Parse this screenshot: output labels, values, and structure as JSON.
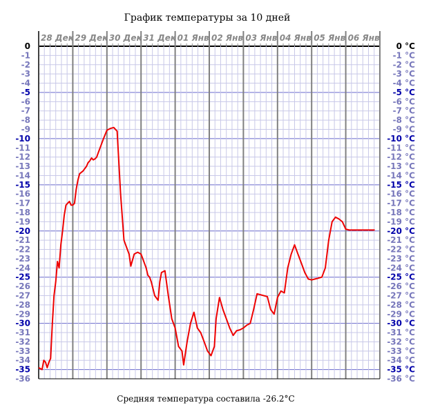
{
  "chart_data": {
    "type": "line",
    "title": "График температуры за 10 дней",
    "footer": "Средняя температура составила -26.2°C",
    "xlabel": "",
    "ylabel": "",
    "y_unit": "°C",
    "ylim": [
      -36,
      0
    ],
    "ytick_step": 1,
    "x_range_days": [
      0,
      10
    ],
    "x_ticks": [
      "28 Дек",
      "29 Дек",
      "30 Дек",
      "31 Дек",
      "01 Янв",
      "02 Янв",
      "03 Янв",
      "04 Янв",
      "05 Янв",
      "06 Янв"
    ],
    "grid": true,
    "colors": {
      "line": "#ee0000",
      "major_grid": "#6666cc",
      "minor_grid": "#c8c8e8",
      "day_grid": "#808080",
      "ytick_major": "#0000aa",
      "ytick_minor": "#7777bb",
      "axis": "#000000"
    },
    "series": [
      {
        "x": [
          0.0,
          0.1,
          0.15,
          0.2,
          0.25,
          0.3,
          0.35,
          0.4,
          0.45,
          0.5,
          0.55,
          0.6,
          0.65,
          0.7,
          0.75,
          0.8,
          0.85,
          0.9,
          0.95,
          1.0,
          1.05,
          1.1,
          1.15,
          1.2,
          1.3,
          1.4,
          1.45,
          1.5,
          1.55,
          1.6,
          1.65,
          1.7,
          1.75,
          1.8,
          1.9,
          2.0,
          2.1,
          2.2,
          2.3,
          2.4,
          2.5,
          2.6,
          2.65,
          2.7,
          2.8,
          2.9,
          3.0,
          3.05,
          3.1,
          3.15,
          3.2,
          3.25,
          3.3,
          3.4,
          3.5,
          3.55,
          3.6,
          3.7,
          3.8,
          3.9,
          4.0,
          4.1,
          4.2,
          4.25,
          4.35,
          4.45,
          4.55,
          4.65,
          4.75,
          4.85,
          4.95,
          5.05,
          5.15,
          5.2,
          5.3,
          5.4,
          5.5,
          5.6,
          5.7,
          5.8,
          5.9,
          6.0,
          6.1,
          6.2,
          6.3,
          6.4,
          6.5,
          6.6,
          6.7,
          6.8,
          6.9,
          7.0,
          7.1,
          7.2,
          7.3,
          7.4,
          7.5,
          7.6,
          7.7,
          7.8,
          7.9,
          8.0,
          8.1,
          8.2,
          8.3,
          8.4,
          8.5,
          8.6,
          8.7,
          8.8,
          8.9,
          9.0,
          9.1,
          9.2,
          9.3,
          9.4,
          9.5,
          9.6,
          9.7,
          9.8,
          9.85
        ],
        "y": [
          -34.8,
          -35.0,
          -34.0,
          -34.2,
          -34.8,
          -34.2,
          -33.8,
          -30.0,
          -27.0,
          -25.5,
          -23.3,
          -24.0,
          -21.5,
          -20.0,
          -18.3,
          -17.2,
          -17.0,
          -16.8,
          -17.2,
          -17.2,
          -17.0,
          -15.5,
          -14.5,
          -13.8,
          -13.5,
          -13.0,
          -12.6,
          -12.4,
          -12.1,
          -12.3,
          -12.2,
          -12.0,
          -11.5,
          -11.0,
          -10.0,
          -9.1,
          -8.9,
          -8.8,
          -9.2,
          -16.0,
          -21.0,
          -22.0,
          -22.5,
          -23.8,
          -22.5,
          -22.3,
          -22.5,
          -23.0,
          -23.5,
          -24.0,
          -24.8,
          -25.0,
          -25.5,
          -27.0,
          -27.5,
          -25.5,
          -24.5,
          -24.3,
          -27.0,
          -29.5,
          -30.5,
          -32.5,
          -33.0,
          -34.5,
          -32.0,
          -30.0,
          -28.8,
          -30.5,
          -31.0,
          -32.0,
          -33.0,
          -33.5,
          -32.5,
          -29.5,
          -27.2,
          -28.5,
          -29.5,
          -30.5,
          -31.3,
          -30.8,
          -30.7,
          -30.5,
          -30.2,
          -30.0,
          -28.5,
          -26.8,
          -26.9,
          -27.0,
          -27.1,
          -28.5,
          -29.0,
          -27.2,
          -26.5,
          -26.7,
          -24.0,
          -22.5,
          -21.5,
          -22.5,
          -23.5,
          -24.5,
          -25.2,
          -25.3,
          -25.2,
          -25.1,
          -25.0,
          -24.0,
          -21.0,
          -19.0,
          -18.5,
          -18.7,
          -19.0,
          -19.8,
          -19.9,
          -19.9,
          -19.9,
          -19.9,
          -19.9,
          -19.9,
          -19.9,
          -19.9,
          -19.9
        ]
      }
    ]
  }
}
